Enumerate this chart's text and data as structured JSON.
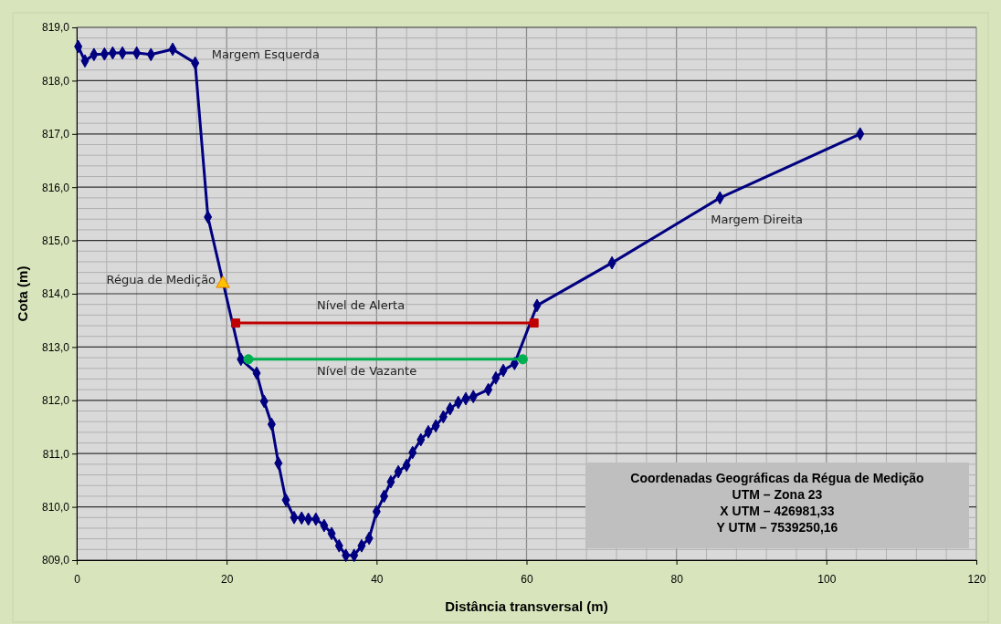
{
  "chart_data": {
    "type": "line",
    "xlabel": "Distância transversal (m)",
    "ylabel": "Cota (m)",
    "xlim": [
      0,
      120
    ],
    "xticks": [
      0,
      20,
      40,
      60,
      80,
      100,
      120
    ],
    "ylim": [
      809,
      819
    ],
    "yticks": [
      {
        "value": 809,
        "label": "809,0"
      },
      {
        "value": 810,
        "label": "810,0"
      },
      {
        "value": 811,
        "label": "811,0"
      },
      {
        "value": 812,
        "label": "812,0"
      },
      {
        "value": 813,
        "label": "813,0"
      },
      {
        "value": 814,
        "label": "814,0"
      },
      {
        "value": 815,
        "label": "815,0"
      },
      {
        "value": 816,
        "label": "816,0"
      },
      {
        "value": 817,
        "label": "817,0"
      },
      {
        "value": 818,
        "label": "818,0"
      },
      {
        "value": 819,
        "label": "819,0"
      }
    ],
    "grid": true,
    "series": [
      {
        "marker": "diamond",
        "color": "#000080",
        "x": [
          0.2,
          1.1,
          2.3,
          3.7,
          4.8,
          6.1,
          8.0,
          9.9,
          12.8,
          15.8,
          17.5,
          21.9,
          24.0,
          25.0,
          26.0,
          26.9,
          27.9,
          29.0,
          30.0,
          30.9,
          31.9,
          33.0,
          34.0,
          35.0,
          35.9,
          37.0,
          38.0,
          39.0,
          40.0,
          41.0,
          41.9,
          42.9,
          44.0,
          44.8,
          45.9,
          46.9,
          47.9,
          48.9,
          49.8,
          50.9,
          51.9,
          52.9,
          54.9,
          55.9,
          56.9,
          58.4,
          61.4,
          71.4,
          85.8,
          104.5
        ],
        "values": [
          818.64,
          818.37,
          818.49,
          818.5,
          818.52,
          818.52,
          818.52,
          818.49,
          818.59,
          818.33,
          815.44,
          812.77,
          812.51,
          811.98,
          811.55,
          810.82,
          810.13,
          809.8,
          809.79,
          809.77,
          809.77,
          809.65,
          809.5,
          809.27,
          809.09,
          809.09,
          809.27,
          809.41,
          809.91,
          810.2,
          810.47,
          810.66,
          810.78,
          811.02,
          811.26,
          811.41,
          811.52,
          811.69,
          811.84,
          811.96,
          812.03,
          812.07,
          812.2,
          812.42,
          812.56,
          812.69,
          813.78,
          814.58,
          815.8,
          817.0
        ]
      },
      {
        "type": "line",
        "marker": "square",
        "color": "#c00000",
        "x": [
          21.2,
          61.0
        ],
        "values": [
          813.45,
          813.45
        ]
      },
      {
        "type": "line",
        "marker": "circle",
        "color": "#00b050",
        "x": [
          22.9,
          59.5
        ],
        "values": [
          812.77,
          812.77
        ]
      },
      {
        "type": "scatter",
        "marker": "triangle",
        "color": "#ffc000",
        "x": [
          19.5
        ],
        "values": [
          814.19
        ]
      }
    ],
    "annotations": [
      {
        "text": "Margem Esquerda",
        "x": 15.8,
        "y": 818.33
      },
      {
        "text": "Régua de Medição",
        "x": 19.5,
        "y": 814.19
      },
      {
        "text": "Nível de Alerta",
        "x": 37.9,
        "y": 813.45
      },
      {
        "text": "Nível de Vazante",
        "x": 38.7,
        "y": 812.77
      },
      {
        "text": "Margem Direita",
        "x": 85.8,
        "y": 815.8
      },
      "Coordenadas Geográficas da Régua de Medição",
      "UTM – Zona 23",
      "X UTM – 426981,33",
      "Y UTM – 7539250,16"
    ]
  }
}
